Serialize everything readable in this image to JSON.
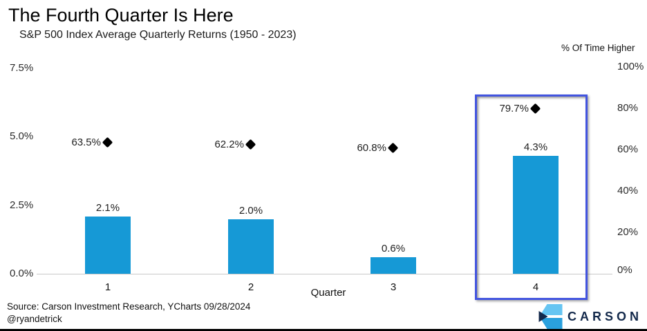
{
  "header": {
    "title": "The Fourth Quarter Is Here",
    "subtitle": "S&P 500 Index Average Quarterly Returns (1950 - 2023)"
  },
  "chart_data": {
    "type": "bar",
    "title": "The Fourth Quarter Is Here",
    "subtitle": "S&P 500 Index Average Quarterly Returns (1950 - 2023)",
    "categories": [
      "1",
      "2",
      "3",
      "4"
    ],
    "xlabel": "Quarter",
    "series": [
      {
        "name": "Average quarterly return",
        "type": "bar",
        "axis": "left",
        "values": [
          2.1,
          2.0,
          0.6,
          4.3
        ],
        "labels": [
          "2.1%",
          "2.0%",
          "0.6%",
          "4.3%"
        ],
        "color": "#1699d6"
      },
      {
        "name": "% Of Time Higher",
        "type": "scatter",
        "marker": "diamond",
        "axis": "right",
        "values": [
          63.5,
          62.2,
          60.8,
          79.7
        ],
        "labels": [
          "63.5%",
          "62.2%",
          "60.8%",
          "79.7%"
        ],
        "color": "#000000"
      }
    ],
    "left_axis": {
      "tick_labels": [
        "7.5%",
        "5.0%",
        "2.5%",
        "0.0%"
      ],
      "tick_values": [
        7.5,
        5.0,
        2.5,
        0.0
      ],
      "range": [
        0,
        7.5
      ]
    },
    "right_axis": {
      "title": "% Of Time Higher",
      "tick_labels": [
        "100%",
        "80%",
        "60%",
        "40%",
        "20%",
        "0%"
      ],
      "tick_values": [
        100,
        80,
        60,
        40,
        20,
        0
      ],
      "range": [
        0,
        100
      ]
    },
    "grid": "baseline only",
    "legend": "none",
    "highlight": {
      "category": "4",
      "index": 3,
      "border_color": "#4254e0"
    }
  },
  "footer": {
    "source": "Source: Carson Investment Research, YCharts 09/28/2024",
    "handle": "@ryandetrick",
    "brand": "CARSON"
  },
  "colors": {
    "bar": "#1699d6",
    "marker": "#000000",
    "highlight_border": "#4254e0",
    "brand_navy": "#13294b",
    "logo_light_blue": "#66c5f2",
    "logo_mid_blue": "#2aa0dd",
    "baseline": "#c8c8c8"
  }
}
